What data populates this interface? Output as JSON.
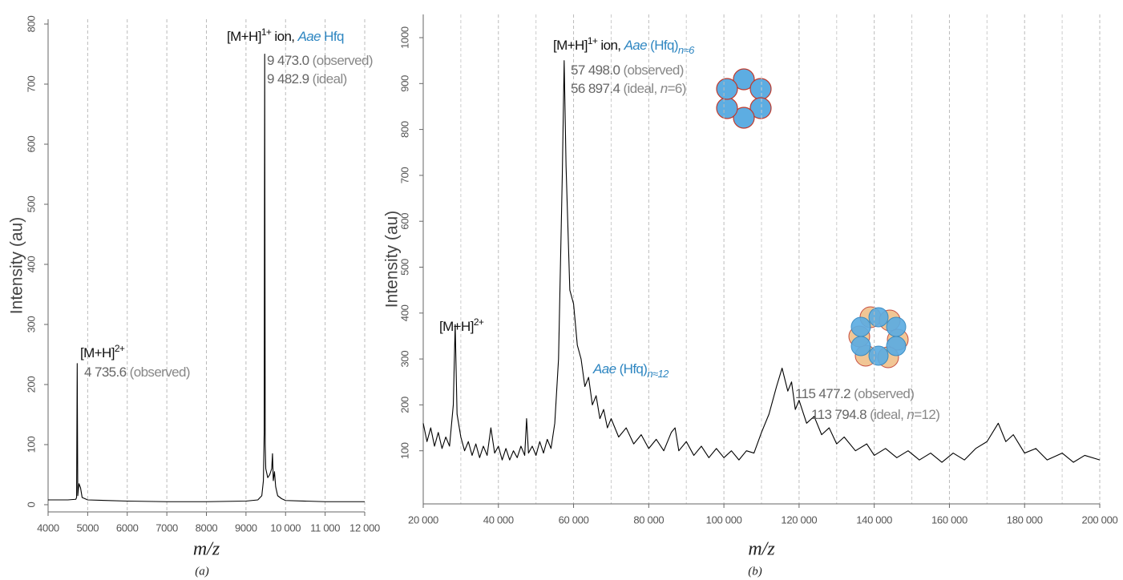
{
  "chart_data": [
    {
      "type": "line",
      "caption": "(a)",
      "y_label": "Intensity (au)",
      "x_label": "m/z",
      "color": "#000000",
      "grid": "x",
      "xlim": [
        4000,
        12000
      ],
      "xticks": [
        4000,
        5000,
        6000,
        7000,
        8000,
        9000,
        {
          "value": 10000,
          "label": "10 000"
        },
        {
          "value": 11000,
          "label": "11 000"
        },
        {
          "value": 12000,
          "label": "12 000"
        }
      ],
      "ylim": [
        0,
        800
      ],
      "yticks": [
        0,
        100,
        200,
        300,
        400,
        500,
        600,
        700,
        800
      ],
      "x": [
        4000,
        4500,
        4700,
        4720,
        4735.6,
        4750,
        4780,
        4820,
        4860,
        5000,
        6000,
        7000,
        8000,
        9000,
        9300,
        9400,
        9440,
        9460,
        9473,
        9486,
        9500,
        9550,
        9600,
        9650,
        9670,
        9690,
        9720,
        9750,
        9800,
        9900,
        10000,
        11000,
        12000
      ],
      "values": [
        8,
        8,
        9,
        12,
        235,
        15,
        35,
        28,
        12,
        8,
        6,
        5,
        5,
        6,
        8,
        15,
        40,
        120,
        750,
        100,
        60,
        45,
        50,
        60,
        85,
        40,
        55,
        30,
        15,
        10,
        7,
        5,
        5
      ],
      "annotations": [
        {
          "parts": [
            "[M+H]",
            "2+"
          ]
        },
        {
          "parts": [
            "4 735.6",
            " (observed)"
          ]
        },
        {
          "parts": [
            "[M+H]",
            "1+",
            " ion, ",
            "Aae",
            " Hfq"
          ]
        },
        {
          "parts": [
            "9 473.0",
            " (observed)"
          ]
        },
        {
          "parts": [
            "9 482.9",
            " (ideal)"
          ]
        }
      ]
    },
    {
      "type": "line",
      "caption": "(b)",
      "y_label": "Intensity (au)",
      "x_label": "m/z",
      "color": "#000000",
      "grid": "x",
      "xlim": [
        20000,
        200000
      ],
      "xticks": [
        {
          "value": 20000,
          "label": "20 000"
        },
        {
          "value": 40000,
          "label": "40 000"
        },
        {
          "value": 60000,
          "label": "60 000"
        },
        {
          "value": 80000,
          "label": "80 000"
        },
        {
          "value": 100000,
          "label": "100 000"
        },
        {
          "value": 120000,
          "label": "120 000"
        },
        {
          "value": 140000,
          "label": "140 000"
        },
        {
          "value": 160000,
          "label": "160 000"
        },
        {
          "value": 180000,
          "label": "180 000"
        },
        {
          "value": 200000,
          "label": "200 000"
        }
      ],
      "ylim": [
        0,
        1000
      ],
      "yticks": [
        100,
        200,
        300,
        400,
        500,
        600,
        700,
        800,
        900,
        1000
      ],
      "x": [
        20000,
        21000,
        22000,
        23000,
        24000,
        25000,
        26000,
        27000,
        28000,
        28500,
        29000,
        30000,
        31000,
        32000,
        33000,
        34000,
        35000,
        36000,
        37000,
        38000,
        39000,
        40000,
        41000,
        42000,
        43000,
        44000,
        45000,
        46000,
        47000,
        47500,
        48000,
        49000,
        50000,
        51000,
        52000,
        53000,
        54000,
        55000,
        56000,
        57000,
        57498,
        58000,
        59000,
        60000,
        61000,
        62000,
        63000,
        64000,
        65000,
        66000,
        67000,
        68000,
        69000,
        70000,
        72000,
        74000,
        76000,
        78000,
        80000,
        82000,
        84000,
        86000,
        87000,
        88000,
        90000,
        92000,
        94000,
        96000,
        98000,
        100000,
        102000,
        104000,
        106000,
        108000,
        110000,
        112000,
        114000,
        115477,
        117000,
        118000,
        119000,
        120000,
        122000,
        124000,
        126000,
        128000,
        130000,
        132000,
        135000,
        138000,
        140000,
        143000,
        146000,
        149000,
        152000,
        155000,
        158000,
        161000,
        164000,
        167000,
        170000,
        173000,
        175000,
        177000,
        180000,
        183000,
        186000,
        190000,
        193000,
        196000,
        200000
      ],
      "values": [
        160,
        120,
        150,
        110,
        140,
        105,
        130,
        110,
        200,
        375,
        180,
        130,
        100,
        120,
        90,
        115,
        85,
        110,
        90,
        150,
        95,
        110,
        80,
        105,
        80,
        100,
        85,
        110,
        90,
        170,
        95,
        110,
        90,
        120,
        95,
        125,
        105,
        160,
        300,
        700,
        950,
        720,
        450,
        420,
        330,
        300,
        240,
        260,
        200,
        220,
        170,
        190,
        150,
        170,
        130,
        150,
        115,
        135,
        105,
        125,
        100,
        140,
        150,
        100,
        120,
        90,
        110,
        85,
        105,
        85,
        100,
        80,
        100,
        95,
        140,
        180,
        240,
        280,
        230,
        250,
        190,
        210,
        160,
        175,
        135,
        150,
        115,
        130,
        100,
        115,
        90,
        105,
        85,
        100,
        80,
        95,
        75,
        95,
        80,
        105,
        120,
        160,
        120,
        135,
        95,
        105,
        80,
        95,
        75,
        90,
        80
      ],
      "annotations": [
        {
          "parts": [
            "[M+H]",
            "1+",
            " ion, ",
            "Aae",
            " (Hfq)",
            "n≈6"
          ]
        },
        {
          "parts": [
            "57 498.0",
            " (observed)"
          ]
        },
        {
          "parts": [
            "56 897.4",
            " (ideal, ",
            "n",
            "=6)"
          ]
        },
        {
          "parts": [
            "[M+H]",
            "2+"
          ]
        },
        {
          "parts": [
            "Aae",
            " (Hfq)",
            "n≈12"
          ]
        },
        {
          "parts": [
            "115 477.2",
            " (observed)"
          ]
        },
        {
          "parts": [
            "113 794.8",
            " (ideal, ",
            "n",
            "=12)"
          ]
        }
      ]
    }
  ]
}
